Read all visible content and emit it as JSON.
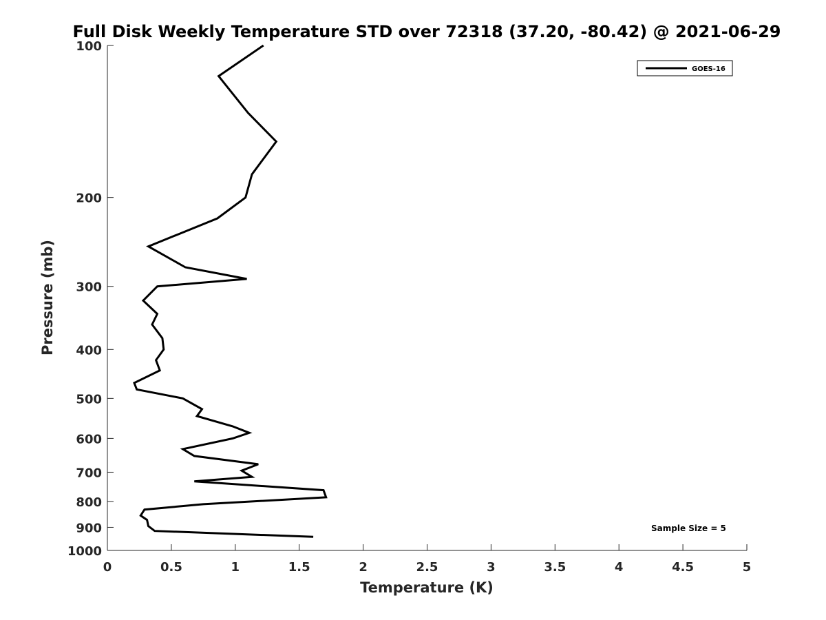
{
  "chart_data": {
    "type": "line",
    "title": "Full Disk Weekly Temperature STD over 72318 (37.20, -80.42) @ 2021-06-29",
    "xlabel": "Temperature (K)",
    "ylabel": "Pressure (mb)",
    "xlim": [
      0,
      5
    ],
    "ylim": [
      100,
      1000
    ],
    "y_scale": "log",
    "y_direction": "reversed",
    "x_ticks": [
      "0",
      "0.5",
      "1",
      "1.5",
      "2",
      "2.5",
      "3",
      "3.5",
      "4",
      "4.5",
      "5"
    ],
    "y_ticks": [
      "100",
      "200",
      "300",
      "400",
      "500",
      "600",
      "700",
      "800",
      "900",
      "1000"
    ],
    "grid": false,
    "legend_position": "top-right",
    "series": [
      {
        "name": "GOES-16",
        "color": "#000000",
        "x": [
          1.22,
          0.87,
          1.1,
          1.32,
          1.13,
          1.08,
          0.86,
          0.32,
          0.61,
          1.09,
          0.39,
          0.28,
          0.39,
          0.35,
          0.43,
          0.44,
          0.38,
          0.41,
          0.21,
          0.23,
          0.59,
          0.74,
          0.7,
          0.98,
          1.11,
          0.98,
          0.59,
          0.68,
          1.18,
          1.05,
          1.13,
          0.68,
          1.69,
          1.71,
          0.75,
          0.29,
          0.26,
          0.31,
          0.32,
          0.37,
          1.61
        ],
        "y": [
          100,
          115,
          136,
          155,
          180,
          200,
          220,
          250,
          275,
          290,
          300,
          320,
          340,
          357,
          380,
          400,
          420,
          440,
          466,
          480,
          500,
          525,
          542,
          568,
          585,
          600,
          630,
          650,
          675,
          695,
          715,
          730,
          760,
          785,
          810,
          830,
          853,
          870,
          895,
          915,
          940
        ]
      }
    ],
    "annotations": [
      "Sample Size = 5"
    ]
  }
}
